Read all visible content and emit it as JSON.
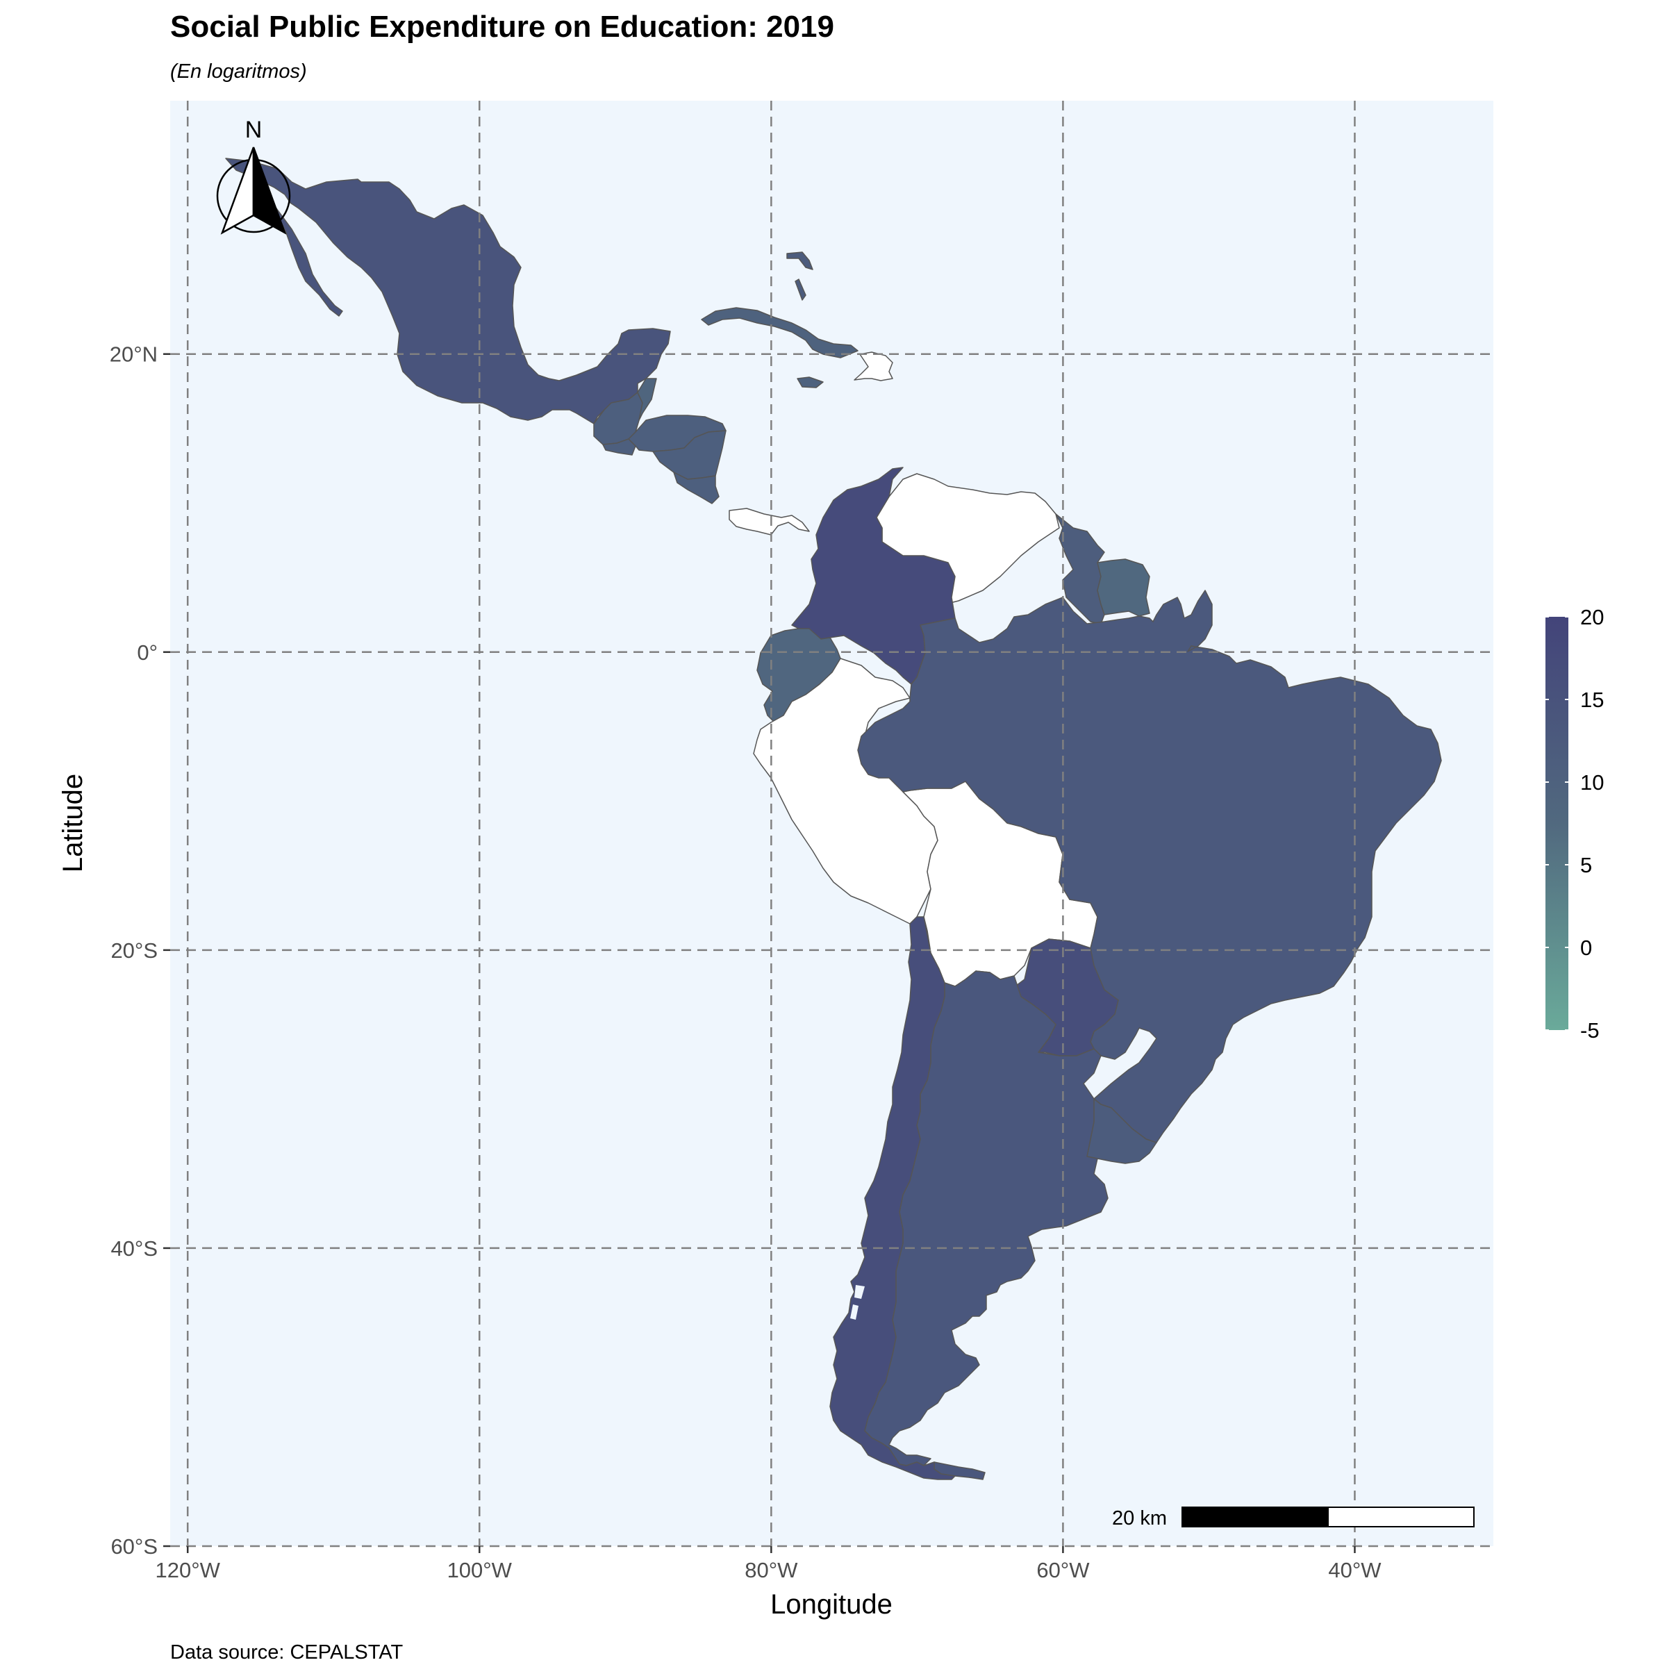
{
  "title": "Social Public Expenditure on Education: 2019",
  "subtitle": "(En logaritmos)",
  "x_axis": {
    "title": "Longitude",
    "ticks": [
      {
        "value": -120,
        "label": "120°W"
      },
      {
        "value": -100,
        "label": "100°W"
      },
      {
        "value": -80,
        "label": "80°W"
      },
      {
        "value": -60,
        "label": "60°W"
      },
      {
        "value": -40,
        "label": "40°W"
      }
    ]
  },
  "y_axis": {
    "title": "Latitude",
    "ticks": [
      {
        "value": 20,
        "label": "20°N"
      },
      {
        "value": 0,
        "label": "0°"
      },
      {
        "value": -20,
        "label": "20°S"
      },
      {
        "value": -40,
        "label": "40°S"
      },
      {
        "value": -60,
        "label": "60°S"
      }
    ]
  },
  "extent": {
    "lon": [
      -121.2,
      -30.5
    ],
    "lat": [
      -60,
      37
    ]
  },
  "legend": {
    "range": [
      -5,
      20
    ],
    "labels": [
      "20",
      "15",
      "10",
      "5",
      "0",
      "-5"
    ],
    "color_low": "#6aaa9a",
    "color_high": "#43447a"
  },
  "background_color": "#eff6fd",
  "north_arrow_label": "N",
  "scale_bar_label": "20 km",
  "caption": "Data source: CEPALSTAT",
  "regions": [
    {
      "name": "Mexico",
      "value": 14.5
    },
    {
      "name": "Guatemala",
      "value": 11
    },
    {
      "name": "Belize",
      "value": 9
    },
    {
      "name": "Honduras",
      "value": 11
    },
    {
      "name": "El Salvador",
      "value": 11
    },
    {
      "name": "Nicaragua",
      "value": 11
    },
    {
      "name": "Costa Rica",
      "value": 11
    },
    {
      "name": "Cuba",
      "value": 10
    },
    {
      "name": "Jamaica",
      "value": 10
    },
    {
      "name": "Colombia",
      "value": 17.5
    },
    {
      "name": "Ecuador",
      "value": 8.5
    },
    {
      "name": "Guyana",
      "value": 11.5
    },
    {
      "name": "Suriname",
      "value": 8
    },
    {
      "name": "Brazil",
      "value": 13
    },
    {
      "name": "Paraguay",
      "value": 16.5
    },
    {
      "name": "Uruguay",
      "value": 12
    },
    {
      "name": "Argentina",
      "value": 13.5
    },
    {
      "name": "Chile",
      "value": 16.5
    }
  ]
}
